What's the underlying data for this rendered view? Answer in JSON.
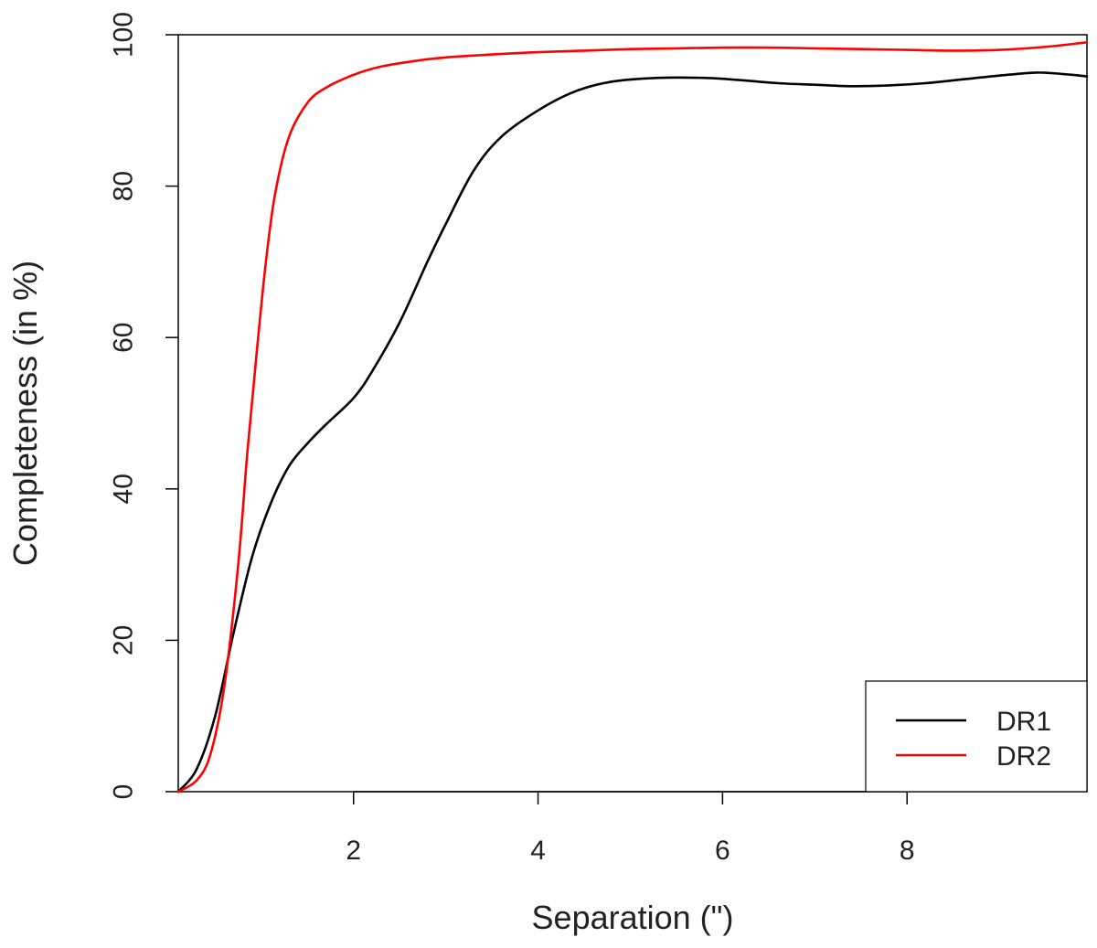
{
  "chart_data": {
    "type": "line",
    "title": "",
    "xlabel": "Separation (\")",
    "ylabel": "Completeness (in %)",
    "xlim": [
      0.1,
      9.95
    ],
    "ylim": [
      0,
      100
    ],
    "xticks": [
      2,
      4,
      6,
      8
    ],
    "yticks": [
      0,
      20,
      40,
      60,
      80,
      100
    ],
    "grid": false,
    "legend_position": "bottom-right",
    "series": [
      {
        "name": "DR1",
        "color": "#000000",
        "x": [
          0.1,
          0.3,
          0.5,
          0.7,
          0.9,
          1.1,
          1.3,
          1.5,
          1.7,
          2.0,
          2.2,
          2.5,
          2.8,
          3.0,
          3.3,
          3.6,
          4.0,
          4.4,
          4.8,
          5.3,
          5.8,
          6.2,
          6.6,
          7.0,
          7.4,
          7.8,
          8.2,
          8.6,
          9.0,
          9.4,
          9.7,
          9.95
        ],
        "y": [
          0,
          3,
          10,
          21,
          31,
          38,
          43,
          46,
          48.5,
          52,
          55.5,
          62,
          70,
          75,
          82,
          86.5,
          90,
          92.5,
          93.8,
          94.3,
          94.3,
          94,
          93.6,
          93.4,
          93.2,
          93.3,
          93.6,
          94.1,
          94.6,
          95,
          94.8,
          94.5
        ]
      },
      {
        "name": "DR2",
        "color": "#ff0000",
        "x": [
          0.1,
          0.3,
          0.45,
          0.6,
          0.75,
          0.85,
          0.95,
          1.05,
          1.15,
          1.3,
          1.5,
          1.7,
          2.0,
          2.3,
          2.7,
          3.0,
          3.5,
          4.0,
          4.5,
          5.0,
          5.5,
          6.0,
          6.5,
          7.0,
          7.5,
          8.0,
          8.5,
          9.0,
          9.5,
          9.95
        ],
        "y": [
          0,
          1.5,
          5,
          14,
          30,
          45,
          58,
          70,
          79,
          86.5,
          91,
          93,
          94.7,
          95.8,
          96.6,
          97,
          97.4,
          97.7,
          97.9,
          98.1,
          98.2,
          98.3,
          98.3,
          98.2,
          98.1,
          98,
          97.9,
          98,
          98.4,
          99
        ]
      }
    ]
  }
}
